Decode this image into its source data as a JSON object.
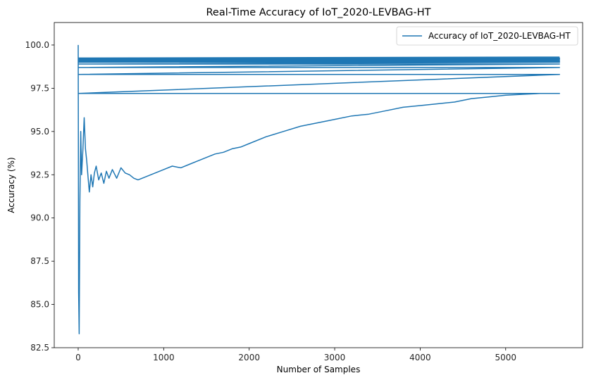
{
  "chart_data": {
    "type": "line",
    "title": "Real-Time Accuracy of IoT_2020-LEVBAG-HT",
    "xlabel": "Number of Samples",
    "ylabel": "Accuracy (%)",
    "xlim": [
      -280,
      5900
    ],
    "ylim": [
      82.5,
      101.3
    ],
    "xticks": [
      0,
      1000,
      2000,
      3000,
      4000,
      5000
    ],
    "yticks": [
      82.5,
      85.0,
      87.5,
      90.0,
      92.5,
      95.0,
      97.5,
      100.0
    ],
    "ytick_labels": [
      "82.5",
      "85.0",
      "87.5",
      "90.0",
      "92.5",
      "95.0",
      "97.5",
      "100.0"
    ],
    "grid": false,
    "legend_position": "upper right",
    "color": "#1f77b4",
    "series": [
      {
        "name": "Accuracy of IoT_2020-LEVBAG-HT",
        "x": [
          0,
          5,
          12,
          20,
          30,
          40,
          55,
          70,
          85,
          100,
          115,
          130,
          150,
          170,
          190,
          210,
          240,
          270,
          300,
          330,
          360,
          400,
          450,
          500,
          550,
          600,
          650,
          700,
          800,
          900,
          1000,
          1100,
          1200,
          1300,
          1400,
          1500,
          1600,
          1700,
          1800,
          1900,
          2000,
          2200,
          2400,
          2600,
          2800,
          3000,
          3200,
          3400,
          3600,
          3800,
          4000,
          4200,
          4400,
          4600,
          4800,
          5000,
          5200,
          5400,
          5630,
          0,
          5630,
          0,
          5630,
          5,
          5630,
          5,
          5630,
          5,
          5630,
          5,
          5630,
          5,
          5630,
          5,
          5630,
          5,
          5630,
          5,
          5630,
          5,
          5630
        ],
        "y": [
          100.0,
          85.7,
          83.3,
          91.0,
          95.0,
          92.5,
          94.0,
          95.8,
          94.0,
          93.3,
          92.4,
          91.5,
          92.5,
          91.8,
          92.6,
          93.0,
          92.2,
          92.6,
          92.0,
          92.7,
          92.3,
          92.8,
          92.3,
          92.9,
          92.6,
          92.5,
          92.3,
          92.2,
          92.4,
          92.6,
          92.8,
          93.0,
          92.9,
          93.1,
          93.3,
          93.5,
          93.7,
          93.8,
          94.0,
          94.1,
          94.3,
          94.7,
          95.0,
          95.3,
          95.5,
          95.7,
          95.9,
          96.0,
          96.2,
          96.4,
          96.5,
          96.6,
          96.7,
          96.9,
          97.0,
          97.1,
          97.15,
          97.2,
          97.2,
          97.2,
          98.3,
          98.3,
          98.3,
          98.3,
          98.7,
          98.7,
          98.9,
          98.9,
          99.0,
          99.0,
          99.05,
          99.05,
          99.1,
          99.1,
          99.15,
          99.15,
          99.2,
          99.2,
          99.25,
          99.25,
          99.3
        ]
      }
    ]
  }
}
